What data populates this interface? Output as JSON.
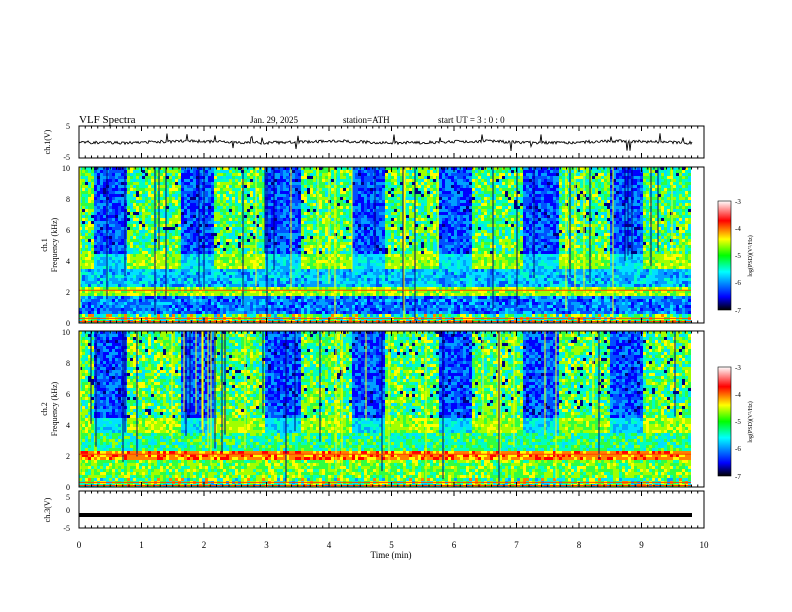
{
  "header": {
    "title": "VLF  Spectra",
    "date": "Jan. 29, 2025",
    "station": "station=ATH",
    "start": "start  UT  =    3  : 0   : 0"
  },
  "chart_data": [
    {
      "type": "line",
      "panel": "ch1-waveform",
      "ylabel": "ch.1(V)",
      "ylim": [
        -5,
        5
      ],
      "yticks": [
        "5",
        "-5"
      ],
      "xlim": [
        0,
        10
      ],
      "baseline": 0,
      "series_color": "#000000"
    },
    {
      "type": "heatmap",
      "panel": "ch1-spectrogram",
      "ylabel_line1": "ch.1",
      "ylabel_line2": "Frequency  (kHz)",
      "ylim": [
        0,
        10
      ],
      "yticks": [
        "10",
        "8",
        "6",
        "4",
        "2",
        "0"
      ],
      "xlim": [
        0,
        10
      ],
      "colorbar": {
        "label": "log(PSD)(V²/Hz)",
        "range": [
          -7,
          -3
        ],
        "ticks": [
          "-3",
          "-4",
          "-5",
          "-6",
          "-7"
        ],
        "colors": [
          "#000000",
          "#0000ff",
          "#00ffff",
          "#00ff00",
          "#ffff00",
          "#ff0000",
          "#ffffff"
        ]
      }
    },
    {
      "type": "heatmap",
      "panel": "ch2-spectrogram",
      "ylabel_line1": "ch.2",
      "ylabel_line2": "Frequency  (kHz)",
      "ylim": [
        0,
        10
      ],
      "yticks": [
        "10",
        "8",
        "6",
        "4",
        "2",
        "0"
      ],
      "xlim": [
        0,
        10
      ],
      "colorbar": {
        "label": "log(PSD)(V²/Hz)",
        "range": [
          -7,
          -3
        ],
        "ticks": [
          "-3",
          "-4",
          "-5",
          "-6",
          "-7"
        ],
        "colors": [
          "#000000",
          "#0000ff",
          "#00ffff",
          "#00ff00",
          "#ffff00",
          "#ff0000",
          "#ffffff"
        ]
      }
    },
    {
      "type": "line",
      "panel": "ch3-waveform",
      "ylabel": "ch.3(V)",
      "ylim": [
        -5,
        5
      ],
      "yticks": [
        "5",
        "0",
        "-5"
      ],
      "xlim": [
        0,
        10
      ],
      "baseline": -1.5,
      "series_color": "#000000"
    }
  ],
  "xaxis": {
    "label": "Time  (min)",
    "ticks": [
      "0",
      "1",
      "2",
      "3",
      "4",
      "5",
      "6",
      "7",
      "8",
      "9",
      "10"
    ],
    "range": [
      0,
      10
    ]
  }
}
